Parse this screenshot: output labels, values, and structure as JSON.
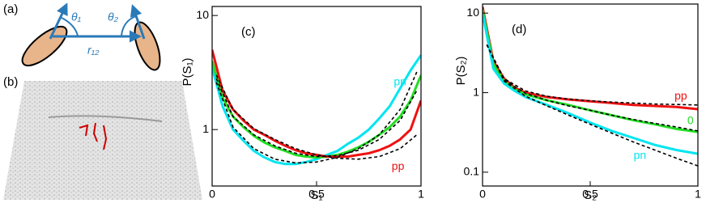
{
  "panel_a": {
    "label": "(a)",
    "theta1": "θ₁",
    "theta2": "θ₂",
    "r12": "r₁₂"
  },
  "panel_b": {
    "label": "(b)"
  },
  "chart_data": [
    {
      "type": "line",
      "panel_label": "(c)",
      "xlabel": "S₁",
      "ylabel": "P(S₁)",
      "xlim": [
        0,
        1
      ],
      "ylim": [
        0.32,
        12
      ],
      "xticks": [
        0,
        0.5,
        1
      ],
      "yticks": [
        1,
        10
      ],
      "log_y": true,
      "series": [
        {
          "name": "pn",
          "color": "#00e5f0",
          "linestyle": "solid",
          "x": [
            0,
            0.05,
            0.1,
            0.15,
            0.2,
            0.25,
            0.3,
            0.35,
            0.4,
            0.45,
            0.5,
            0.55,
            0.6,
            0.65,
            0.7,
            0.75,
            0.8,
            0.85,
            0.9,
            0.95,
            1
          ],
          "values": [
            3.5,
            1.6,
            1.0,
            0.8,
            0.65,
            0.57,
            0.52,
            0.5,
            0.5,
            0.52,
            0.55,
            0.6,
            0.65,
            0.75,
            0.85,
            1.0,
            1.25,
            1.6,
            2.3,
            3.3,
            4.5
          ]
        },
        {
          "color": "#22dd22",
          "linestyle": "solid",
          "x": [
            0,
            0.05,
            0.1,
            0.15,
            0.2,
            0.25,
            0.3,
            0.35,
            0.4,
            0.45,
            0.5,
            0.55,
            0.6,
            0.65,
            0.7,
            0.75,
            0.8,
            0.85,
            0.9,
            0.95,
            1
          ],
          "values": [
            4,
            1.9,
            1.3,
            1.05,
            0.88,
            0.77,
            0.7,
            0.65,
            0.6,
            0.58,
            0.57,
            0.58,
            0.6,
            0.64,
            0.7,
            0.78,
            0.9,
            1.05,
            1.3,
            1.8,
            3
          ]
        },
        {
          "name": "pp",
          "color": "#ee1111",
          "linestyle": "solid",
          "x": [
            0,
            0.05,
            0.1,
            0.15,
            0.2,
            0.25,
            0.3,
            0.35,
            0.4,
            0.45,
            0.5,
            0.55,
            0.6,
            0.65,
            0.7,
            0.75,
            0.8,
            0.85,
            0.9,
            0.95,
            1
          ],
          "values": [
            5,
            2.2,
            1.5,
            1.2,
            1.0,
            0.9,
            0.8,
            0.72,
            0.66,
            0.62,
            0.6,
            0.58,
            0.58,
            0.58,
            0.6,
            0.62,
            0.66,
            0.72,
            0.82,
            1.0,
            1.8
          ]
        },
        {
          "color": "#000000",
          "linestyle": "dashed",
          "x": [
            0.02,
            0.1,
            0.2,
            0.3,
            0.4,
            0.5,
            0.6,
            0.7,
            0.8,
            0.9,
            0.98
          ],
          "values": [
            2.6,
            1.05,
            0.68,
            0.55,
            0.51,
            0.52,
            0.57,
            0.68,
            0.9,
            1.5,
            3.2
          ]
        },
        {
          "color": "#000000",
          "linestyle": "dashed",
          "x": [
            0.02,
            0.1,
            0.2,
            0.3,
            0.4,
            0.5,
            0.6,
            0.7,
            0.8,
            0.9,
            0.98
          ],
          "values": [
            2.8,
            1.3,
            0.9,
            0.72,
            0.62,
            0.58,
            0.59,
            0.66,
            0.82,
            1.2,
            2.2
          ]
        },
        {
          "color": "#000000",
          "linestyle": "dashed",
          "x": [
            0.02,
            0.1,
            0.2,
            0.3,
            0.4,
            0.5,
            0.6,
            0.7,
            0.8,
            0.9,
            0.98
          ],
          "values": [
            3.0,
            1.5,
            1.02,
            0.82,
            0.68,
            0.6,
            0.56,
            0.55,
            0.58,
            0.68,
            0.9
          ]
        }
      ]
    },
    {
      "type": "line",
      "panel_label": "(d)",
      "xlabel": "S₂",
      "ylabel": "P(S₂)",
      "xlim": [
        0,
        1
      ],
      "ylim": [
        0.067,
        13
      ],
      "xticks": [
        0,
        0.5,
        1
      ],
      "yticks": [
        0.1,
        1,
        10
      ],
      "log_y": true,
      "series": [
        {
          "name": "pp",
          "color": "#ee1111",
          "linestyle": "solid",
          "x": [
            0,
            0.05,
            0.1,
            0.15,
            0.2,
            0.3,
            0.4,
            0.5,
            0.6,
            0.7,
            0.8,
            0.9,
            1
          ],
          "values": [
            12,
            2.5,
            1.5,
            1.15,
            1.0,
            0.88,
            0.82,
            0.78,
            0.74,
            0.7,
            0.68,
            0.66,
            0.62
          ]
        },
        {
          "name": "0",
          "color": "#22dd22",
          "linestyle": "solid",
          "x": [
            0,
            0.05,
            0.1,
            0.15,
            0.2,
            0.3,
            0.4,
            0.5,
            0.6,
            0.7,
            0.8,
            0.9,
            1
          ],
          "values": [
            11,
            2.3,
            1.4,
            1.1,
            0.95,
            0.8,
            0.7,
            0.6,
            0.52,
            0.45,
            0.4,
            0.35,
            0.32
          ]
        },
        {
          "name": "pn",
          "color": "#00e5f0",
          "linestyle": "solid",
          "x": [
            0,
            0.05,
            0.1,
            0.15,
            0.2,
            0.3,
            0.4,
            0.5,
            0.6,
            0.7,
            0.8,
            0.9,
            1
          ],
          "values": [
            10,
            2.0,
            1.3,
            1.05,
            0.88,
            0.7,
            0.55,
            0.42,
            0.33,
            0.27,
            0.22,
            0.19,
            0.17
          ]
        },
        {
          "color": "#000000",
          "linestyle": "dashed",
          "x": [
            0.02,
            0.1,
            0.2,
            0.3,
            0.4,
            0.5,
            0.6,
            0.7,
            0.8,
            0.9,
            1
          ],
          "values": [
            4,
            1.5,
            1.05,
            0.9,
            0.83,
            0.79,
            0.76,
            0.74,
            0.72,
            0.71,
            0.7
          ]
        },
        {
          "color": "#000000",
          "linestyle": "dashed",
          "x": [
            0.02,
            0.1,
            0.2,
            0.3,
            0.4,
            0.5,
            0.6,
            0.7,
            0.8,
            0.9,
            1
          ],
          "values": [
            4,
            1.45,
            0.98,
            0.8,
            0.68,
            0.6,
            0.52,
            0.46,
            0.41,
            0.37,
            0.33
          ]
        },
        {
          "color": "#000000",
          "linestyle": "dashed",
          "x": [
            0.02,
            0.1,
            0.2,
            0.3,
            0.4,
            0.5,
            0.6,
            0.7,
            0.8,
            0.9,
            1
          ],
          "values": [
            4,
            1.4,
            0.9,
            0.68,
            0.52,
            0.4,
            0.31,
            0.24,
            0.19,
            0.15,
            0.12
          ]
        }
      ]
    }
  ]
}
